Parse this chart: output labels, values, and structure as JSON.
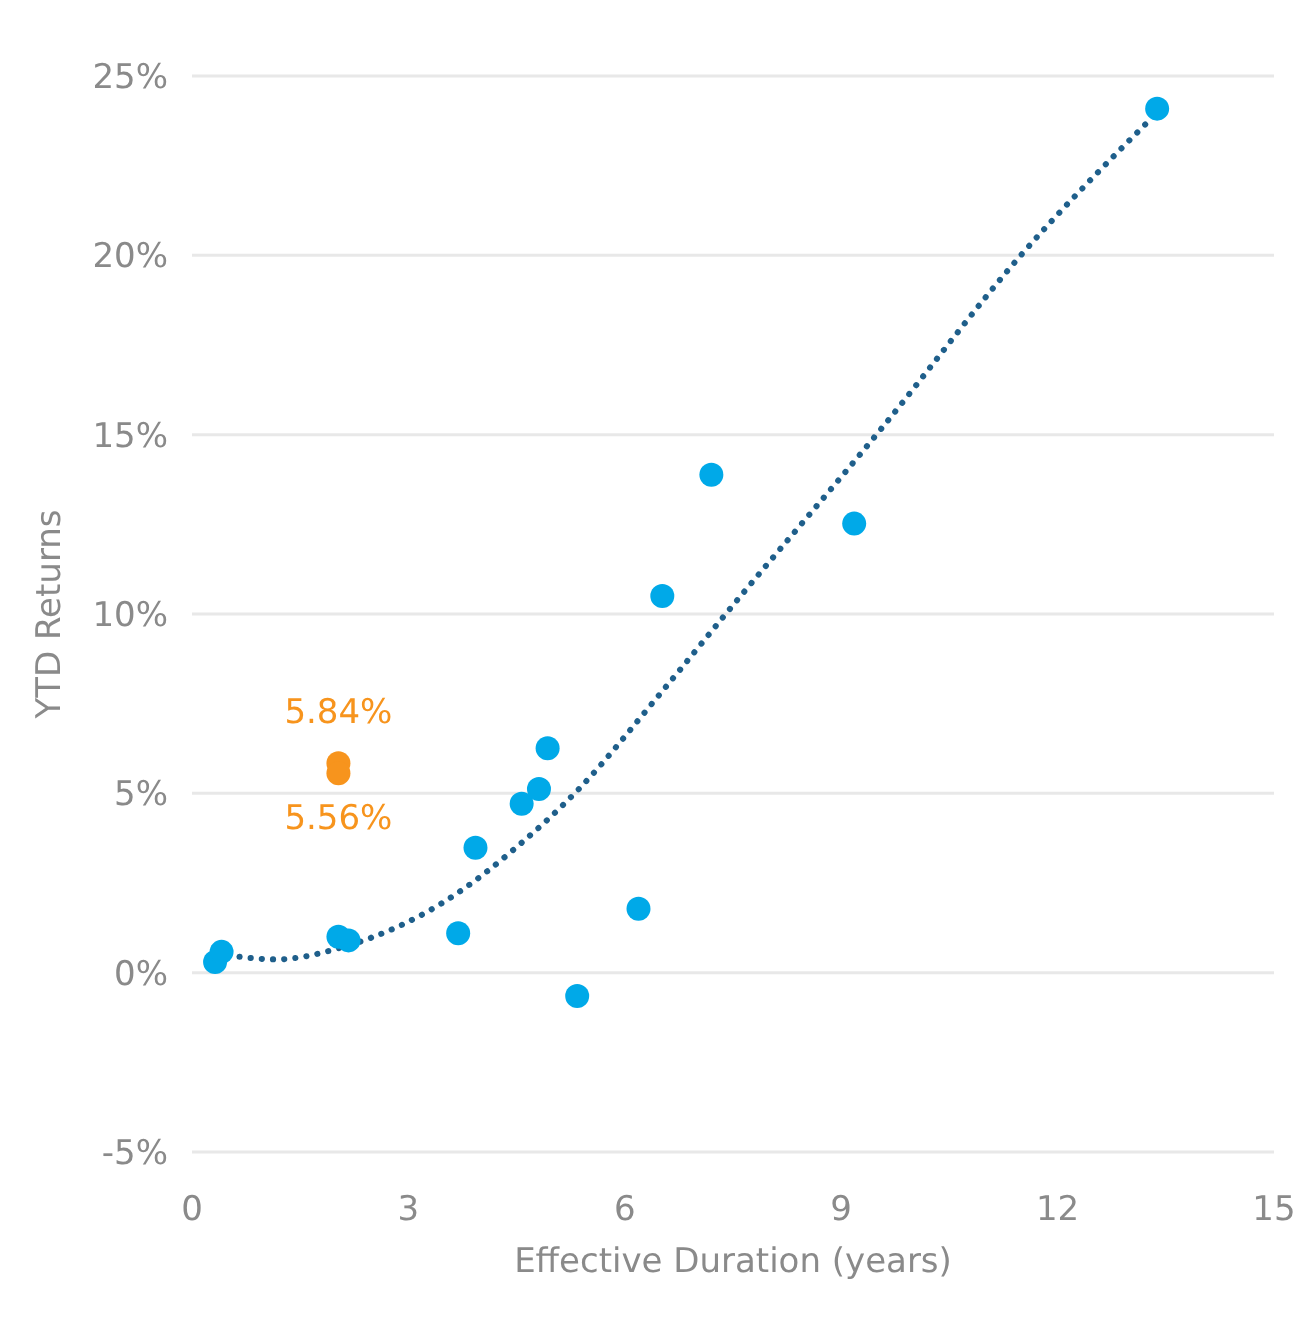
{
  "chart_data": {
    "type": "scatter",
    "xlabel": "Effective Duration (years)",
    "ylabel": "YTD Returns",
    "xlim": [
      0,
      15
    ],
    "xticks": [
      0,
      3,
      6,
      9,
      12,
      15
    ],
    "ylim": [
      -5,
      25
    ],
    "yticks": [
      {
        "value": -5,
        "label": "-5%"
      },
      {
        "value": 0,
        "label": "0%"
      },
      {
        "value": 5,
        "label": "5%"
      },
      {
        "value": 10,
        "label": "10%"
      },
      {
        "value": 15,
        "label": "15%"
      },
      {
        "value": 20,
        "label": "20%"
      },
      {
        "value": 25,
        "label": "25%"
      }
    ],
    "grid": "y",
    "marker": "circle",
    "series": [
      {
        "type": "line",
        "color": "#1f5f8b",
        "line_style": "dotted",
        "marker": "none",
        "x": [
          0.35,
          1.17,
          2.05,
          3.66,
          4.5,
          5.32,
          6.5,
          7.44,
          9.55,
          11.49,
          13.29
        ],
        "values": [
          0.53,
          0.37,
          0.69,
          2.19,
          3.5,
          5.03,
          7.8,
          10.1,
          15.15,
          20.0,
          23.8
        ]
      },
      {
        "color": "#00a9e8",
        "x": [
          0.32,
          0.41,
          2.03,
          2.17,
          3.69,
          3.93,
          4.57,
          4.81,
          4.93,
          5.34,
          6.19,
          6.52,
          7.2,
          9.18,
          13.38
        ],
        "values": [
          0.3,
          0.58,
          1.0,
          0.9,
          1.1,
          3.48,
          4.71,
          5.12,
          6.26,
          -0.65,
          1.78,
          10.5,
          13.88,
          12.52,
          24.09
        ]
      },
      {
        "color": "#f7941d",
        "x": [
          2.03,
          2.03
        ],
        "values": [
          5.84,
          5.56
        ]
      }
    ],
    "annotations": [
      {
        "text": "5.84%",
        "x": 2.03,
        "y": 5.84
      },
      {
        "text": "5.56%",
        "x": 2.03,
        "y": 5.56
      }
    ]
  }
}
